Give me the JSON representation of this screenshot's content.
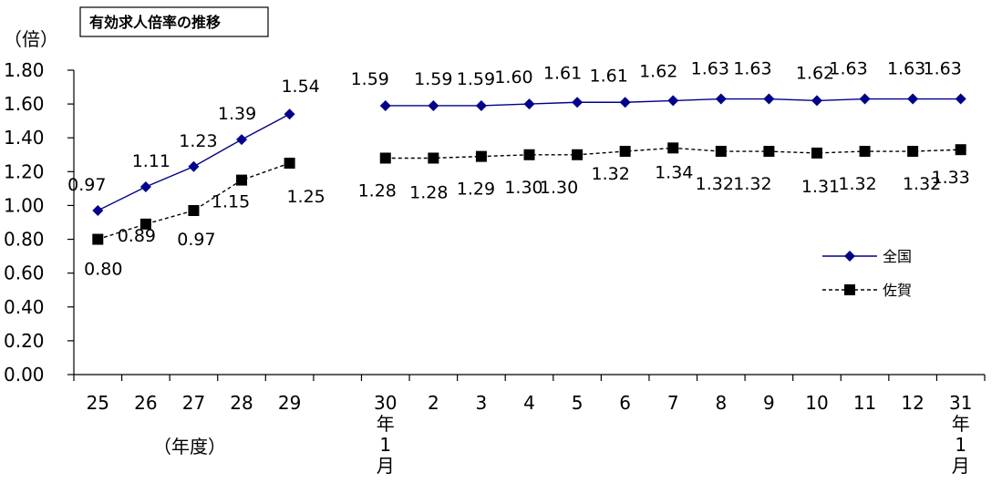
{
  "chart_data": {
    "type": "line",
    "title": "有効求人倍率の推移",
    "y_unit_label": "（倍）",
    "fiscal_year_label": "（年度）",
    "ylim": [
      0,
      1.8
    ],
    "y_ticks": [
      "0.00",
      "0.20",
      "0.40",
      "0.60",
      "0.80",
      "1.00",
      "1.20",
      "1.40",
      "1.60",
      "1.80"
    ],
    "categories": [
      "25",
      "26",
      "27",
      "28",
      "29",
      "",
      "30年1月",
      "2",
      "3",
      "4",
      "5",
      "6",
      "7",
      "8",
      "9",
      "10",
      "11",
      "12",
      "31年1月"
    ],
    "x_tick_labels": [
      {
        "lines": [
          "25"
        ]
      },
      {
        "lines": [
          "26"
        ]
      },
      {
        "lines": [
          "27"
        ]
      },
      {
        "lines": [
          "28"
        ]
      },
      {
        "lines": [
          "29"
        ]
      },
      {
        "lines": [
          ""
        ]
      },
      {
        "lines": [
          "30",
          "年",
          "1",
          "月"
        ]
      },
      {
        "lines": [
          "2"
        ]
      },
      {
        "lines": [
          "3"
        ]
      },
      {
        "lines": [
          "4"
        ]
      },
      {
        "lines": [
          "5"
        ]
      },
      {
        "lines": [
          "6"
        ]
      },
      {
        "lines": [
          "7"
        ]
      },
      {
        "lines": [
          "8"
        ]
      },
      {
        "lines": [
          "9"
        ]
      },
      {
        "lines": [
          "10"
        ]
      },
      {
        "lines": [
          "11"
        ]
      },
      {
        "lines": [
          "12"
        ]
      },
      {
        "lines": [
          "31",
          "年",
          "1",
          "月"
        ]
      }
    ],
    "series": [
      {
        "name": "全国",
        "color": "#00008b",
        "marker": "diamond",
        "line_style": "solid",
        "values": [
          0.97,
          1.11,
          1.23,
          1.39,
          1.54,
          null,
          1.59,
          1.59,
          1.59,
          1.6,
          1.61,
          1.61,
          1.62,
          1.63,
          1.63,
          1.62,
          1.63,
          1.63,
          1.63
        ],
        "labels": [
          "0.97",
          "1.11",
          "1.23",
          "1.39",
          "1.54",
          "",
          "1.59",
          "1.59",
          "1.59",
          "1.60",
          "1.61",
          "1.61",
          "1.62",
          "1.63",
          "1.63",
          "1.62",
          "1.63",
          "1.63",
          "1.63"
        ]
      },
      {
        "name": "佐賀",
        "color": "#000000",
        "marker": "square",
        "line_style": "dashed",
        "values": [
          0.8,
          0.89,
          0.97,
          1.15,
          1.25,
          null,
          1.28,
          1.28,
          1.29,
          1.3,
          1.3,
          1.32,
          1.34,
          1.32,
          1.32,
          1.31,
          1.32,
          1.32,
          1.33
        ],
        "labels": [
          "0.80",
          "0.89",
          "0.97",
          "1.15",
          "1.25",
          "",
          "1.28",
          "1.28",
          "1.29",
          "1.30",
          "1.30",
          "1.32",
          "1.34",
          "1.32",
          "1.32",
          "1.31",
          "1.32",
          "1.32",
          "1.33"
        ]
      }
    ],
    "legend_position": "right",
    "grid": false
  }
}
